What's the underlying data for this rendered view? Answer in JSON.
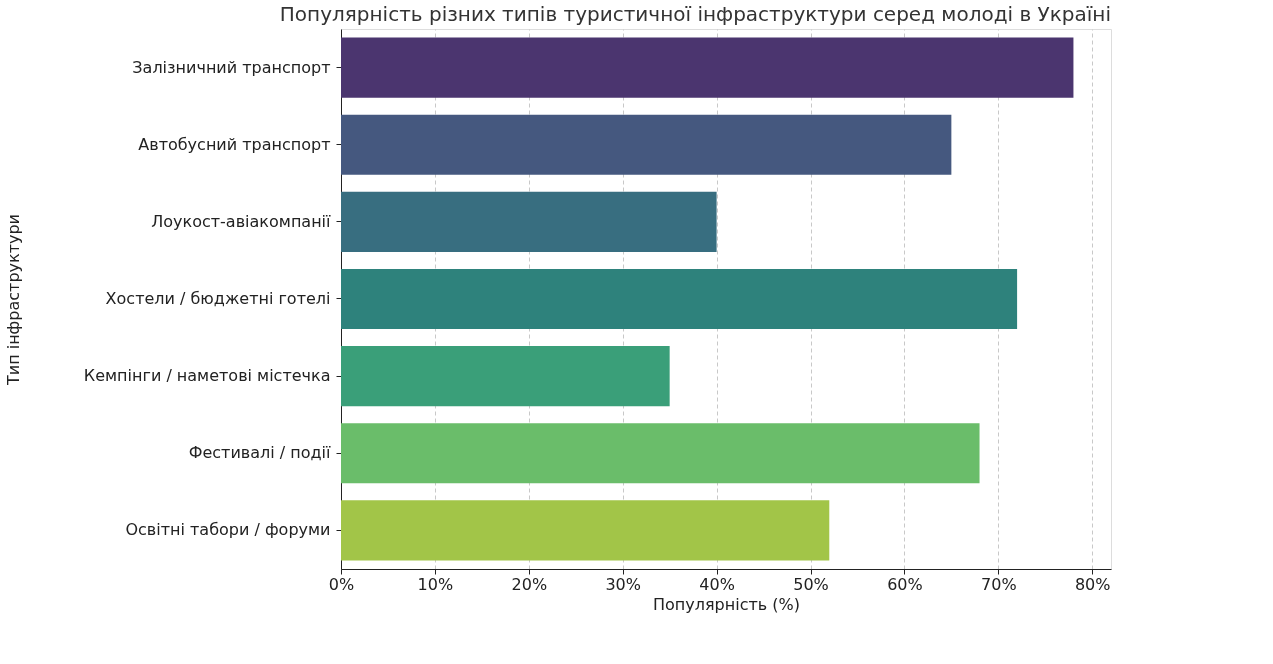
{
  "chart_data": {
    "type": "bar",
    "orientation": "horizontal",
    "title": "Популярність різних типів туристичної інфраструктури серед молоді в Україні",
    "xlabel": "Популярність (%)",
    "ylabel": "Тип інфраструктури",
    "categories": [
      "Залізничний транспорт",
      "Автобусний транспорт",
      "Лоукост-авіакомпанії",
      "Хостели / бюджетні готелі",
      "Кемпінги / наметові містечка",
      "Фестивалі / події",
      "Освітні табори / форуми"
    ],
    "values": [
      78,
      65,
      40,
      72,
      35,
      68,
      52
    ],
    "colors": [
      "#4b356f",
      "#45587f",
      "#386e80",
      "#2e827c",
      "#3a9f79",
      "#6abd6a",
      "#a2c548"
    ],
    "xlim": [
      0,
      82
    ],
    "xticks": [
      {
        "value": 0,
        "label": "0%"
      },
      {
        "value": 10,
        "label": "10%"
      },
      {
        "value": 20,
        "label": "20%"
      },
      {
        "value": 30,
        "label": "30%"
      },
      {
        "value": 40,
        "label": "40%"
      },
      {
        "value": 50,
        "label": "50%"
      },
      {
        "value": 60,
        "label": "60%"
      },
      {
        "value": 70,
        "label": "70%"
      },
      {
        "value": 80,
        "label": "80%"
      }
    ],
    "grid": "x"
  }
}
